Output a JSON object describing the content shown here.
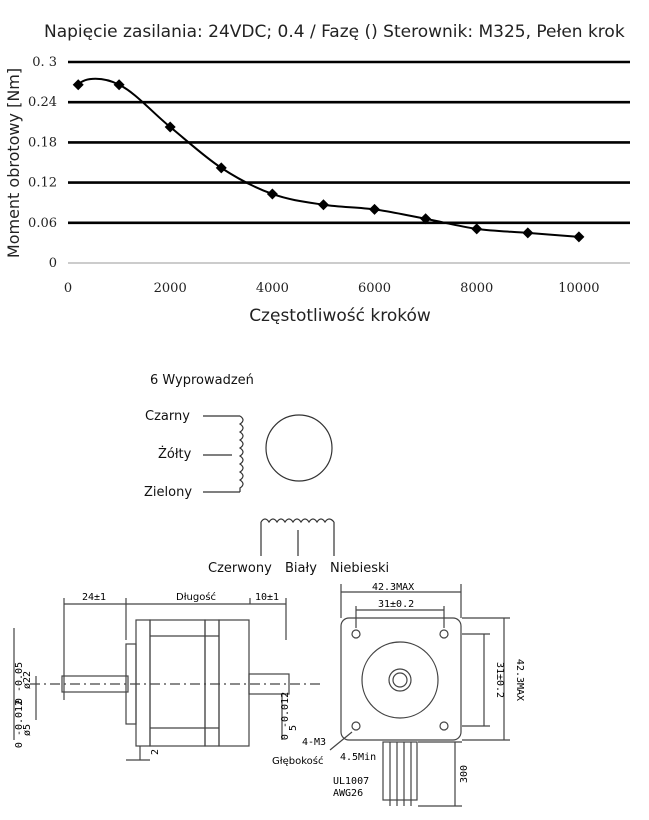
{
  "chart_data": {
    "type": "line",
    "title": "Napięcie zasilania: 24VDC; 0.4 / Fazę  ()  Sterownik: M325, Pełen krok",
    "xlabel": "Częstotliwość kroków",
    "ylabel": "Moment obrotowy [Nm]",
    "xlim": [
      0,
      11000
    ],
    "ylim": [
      0,
      0.3
    ],
    "x_ticks": [
      "0",
      "2000",
      "4000",
      "6000",
      "8000",
      "10000"
    ],
    "y_ticks": [
      "0",
      "0.06",
      "0.12",
      "0.18",
      "0.24",
      "0. 3"
    ],
    "series": [
      {
        "x": [
          200,
          1000,
          2000,
          3000,
          4000,
          5000,
          6000,
          7000,
          8000,
          9000,
          10000
        ],
        "y": [
          0.266,
          0.266,
          0.203,
          0.142,
          0.103,
          0.087,
          0.08,
          0.066,
          0.051,
          0.045,
          0.039
        ]
      }
    ],
    "grid": "horizontal",
    "line_color": "#000000"
  },
  "wiring": {
    "title": "6 Wyprowadzeń",
    "labels": [
      "Czarny",
      "Żółty",
      "Zielony",
      "Czerwony",
      "Biały",
      "Niebieski"
    ]
  },
  "drawing": {
    "label_length": "Długość",
    "dim_shaft": "24±1",
    "dim_flat": "10±1",
    "dim_face": "42.3MAX",
    "dim_holes": "31±0.2",
    "dim_holes_v": "31±0.2",
    "dim_face_v": "42.3MAX",
    "dim_boss": "ø22",
    "dim_boss_tol": "0 -0.05",
    "dim_shaft_d": "ø5",
    "dim_shaft_d_tol": "0 -0.012",
    "dim_shaft_d2": "5",
    "dim_shaft_d2_tol": "0 -0.012",
    "dim_two": "2",
    "dim_screw": "4-M3",
    "label_depth": "Głębokość",
    "dim_depth": "4.5Min",
    "cable_1": "UL1007",
    "cable_2": "AWG26",
    "dim_cable": "300"
  }
}
